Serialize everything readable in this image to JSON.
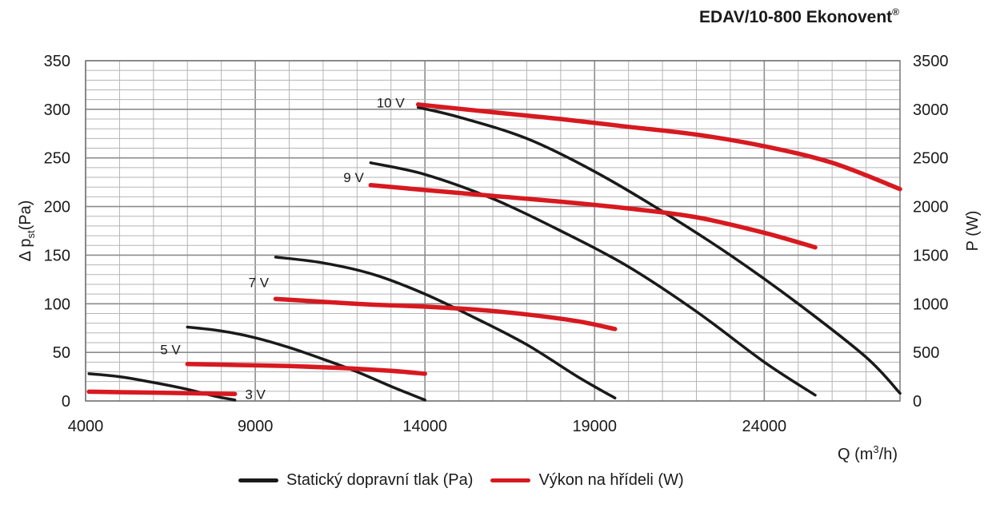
{
  "header": {
    "title": "EDAV/10-800 Ekonovent",
    "title_mark": "®"
  },
  "chart_data": {
    "type": "line",
    "xlabel_main": "Q (m",
    "xlabel_sup": "3",
    "xlabel_end": "/h)",
    "ylabel_left_main": "Δ p",
    "ylabel_left_sub": "st",
    "ylabel_left_end": "(Pa)",
    "ylabel_right": "P (W)",
    "xlim": [
      4000,
      28000
    ],
    "ylim": [
      0,
      350
    ],
    "y2lim": [
      0,
      3500
    ],
    "x_ticks": [
      4000,
      9000,
      14000,
      19000,
      24000
    ],
    "y_ticks": [
      0,
      50,
      100,
      150,
      200,
      250,
      300,
      350
    ],
    "y2_ticks": [
      0,
      500,
      1000,
      1500,
      2000,
      2500,
      3000,
      3500
    ],
    "grid": true,
    "legend_position": "bottom",
    "colors": {
      "pressure": "#1a1a1a",
      "power": "#d71920",
      "grid": "#b5b5b5",
      "grid_major": "#8c8c8c"
    },
    "legend": [
      {
        "label": "Statický dopravní tlak (Pa)",
        "color": "#1a1a1a"
      },
      {
        "label": "Výkon na hřídeli (W)",
        "color": "#d71920"
      }
    ],
    "voltage_labels": [
      {
        "text": "10 V",
        "x": 13400,
        "y": 307
      },
      {
        "text": "9 V",
        "x": 12200,
        "y": 230
      },
      {
        "text": "7 V",
        "x": 9400,
        "y": 122
      },
      {
        "text": "5 V",
        "x": 6800,
        "y": 53
      },
      {
        "text": "3 V",
        "x": 8700,
        "y": 7
      }
    ],
    "series": [
      {
        "name": "Statický dopravní tlak (Pa)",
        "voltage": "10 V",
        "axis": "left",
        "color": "#1a1a1a",
        "x": [
          13800,
          15000,
          17000,
          19000,
          21000,
          23000,
          25000,
          27000,
          28000
        ],
        "y": [
          302,
          292,
          270,
          236,
          195,
          150,
          100,
          45,
          8
        ]
      },
      {
        "name": "Výkon na hřídeli (W)",
        "voltage": "10 V",
        "axis": "right",
        "color": "#d71920",
        "x": [
          13800,
          16000,
          18000,
          20000,
          22000,
          24000,
          26000,
          28000
        ],
        "y": [
          3050,
          2970,
          2900,
          2820,
          2740,
          2620,
          2450,
          2180
        ]
      },
      {
        "name": "Statický dopravní tlak (Pa)",
        "voltage": "9 V",
        "axis": "left",
        "color": "#1a1a1a",
        "x": [
          12400,
          14000,
          16000,
          18000,
          20000,
          22000,
          24000,
          25500
        ],
        "y": [
          245,
          233,
          208,
          175,
          138,
          92,
          40,
          6
        ]
      },
      {
        "name": "Výkon na hřídeli (W)",
        "voltage": "9 V",
        "axis": "right",
        "color": "#d71920",
        "x": [
          12400,
          14000,
          16000,
          18000,
          20000,
          22000,
          24000,
          25500
        ],
        "y": [
          2220,
          2170,
          2110,
          2050,
          1980,
          1890,
          1730,
          1580
        ]
      },
      {
        "name": "Statický dopravní tlak (Pa)",
        "voltage": "7 V",
        "axis": "left",
        "color": "#1a1a1a",
        "x": [
          9600,
          11000,
          12500,
          14000,
          15500,
          17000,
          18500,
          19600
        ],
        "y": [
          148,
          142,
          130,
          110,
          85,
          58,
          25,
          3
        ]
      },
      {
        "name": "Výkon na hřídeli (W)",
        "voltage": "7 V",
        "axis": "right",
        "color": "#d71920",
        "x": [
          9600,
          11000,
          12500,
          14000,
          15500,
          17000,
          18500,
          19600
        ],
        "y": [
          1050,
          1020,
          990,
          970,
          940,
          890,
          820,
          740
        ]
      },
      {
        "name": "Statický dopravní tlak (Pa)",
        "voltage": "5 V",
        "axis": "left",
        "color": "#1a1a1a",
        "x": [
          7000,
          8000,
          9000,
          10000,
          11000,
          12000,
          13000,
          14000
        ],
        "y": [
          76,
          72,
          65,
          55,
          43,
          30,
          15,
          1
        ]
      },
      {
        "name": "Výkon na hřídeli (W)",
        "voltage": "5 V",
        "axis": "right",
        "color": "#d71920",
        "x": [
          7000,
          8500,
          10000,
          11500,
          13000,
          14000
        ],
        "y": [
          380,
          370,
          360,
          340,
          310,
          280
        ]
      },
      {
        "name": "Statický dopravní tlak (Pa)",
        "voltage": "3 V",
        "axis": "left",
        "color": "#1a1a1a",
        "x": [
          4100,
          5000,
          6000,
          7000,
          7800,
          8400
        ],
        "y": [
          28,
          25,
          19,
          12,
          5,
          1
        ]
      },
      {
        "name": "Výkon na hřídeli (W)",
        "voltage": "3 V",
        "axis": "right",
        "color": "#d71920",
        "x": [
          4100,
          5500,
          7000,
          8400
        ],
        "y": [
          95,
          88,
          80,
          72
        ]
      }
    ]
  }
}
